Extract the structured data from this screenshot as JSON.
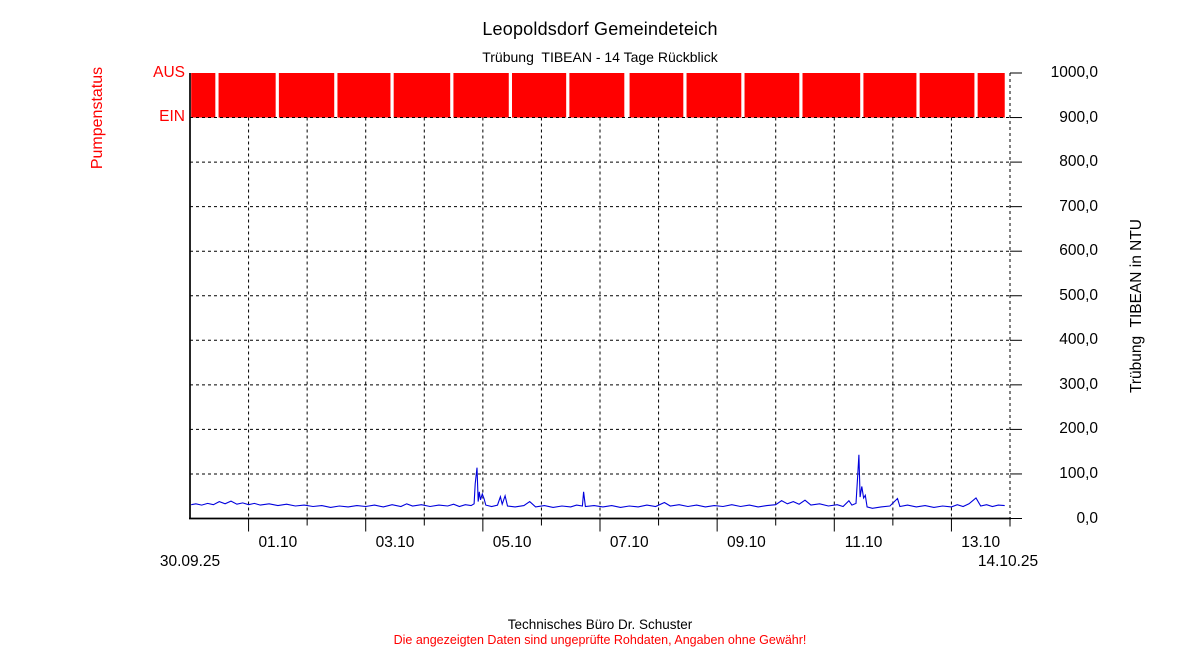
{
  "header": {
    "title": "Leopoldsdorf Gemeindeteich",
    "subtitle": "Trübung  TIBEAN - 14 Tage Rückblick"
  },
  "left_axis": {
    "title": "Pumpenstatus",
    "state_high": "AUS",
    "state_low": "EIN",
    "color": "#ff0000"
  },
  "right_axis": {
    "title": "Trübung  TIBEAN in NTU",
    "tick_labels": [
      "1000,0",
      "900,0",
      "800,0",
      "700,0",
      "600,0",
      "500,0",
      "400,0",
      "300,0",
      "200,0",
      "100,0",
      "0,0"
    ]
  },
  "x_axis": {
    "start_label": "30.09.25",
    "end_label": "14.10.25",
    "tick_labels": [
      "01.10",
      "03.10",
      "05.10",
      "07.10",
      "09.10",
      "11.10",
      "13.10"
    ]
  },
  "footer": {
    "company": "Technisches Büro Dr. Schuster",
    "disclaimer": "Die angezeigten Daten sind ungeprüfte Rohdaten, Angaben ohne Gewähr!"
  },
  "chart_data": {
    "type": "line",
    "title": "Leopoldsdorf Gemeindeteich",
    "subtitle": "Trübung  TIBEAN - 14 Tage Rückblick",
    "x_start_date": "30.09.25",
    "x_end_date": "14.10.25",
    "x_range_days": [
      0,
      14
    ],
    "x_day_tick_labels": [
      "01.10",
      "03.10",
      "05.10",
      "07.10",
      "09.10",
      "11.10",
      "13.10"
    ],
    "ylabel": "Trübung  TIBEAN in NTU",
    "ylim": [
      0,
      1000
    ],
    "y_step": 100,
    "grid": "dashed vertical line per day, dashed horizontal line per 100 NTU",
    "legend_position": "none",
    "pump_status": {
      "label": "Pumpenstatus",
      "high_label": "AUS",
      "low_label": "EIN",
      "band_level_ntu": [
        900,
        1000
      ],
      "color": "#ff0000",
      "span_days": [
        0.02,
        13.91
      ],
      "ein_gap_centers_days": [
        0.46,
        1.49,
        2.49,
        3.45,
        4.47,
        5.47,
        6.45,
        7.46,
        8.45,
        9.44,
        10.43,
        11.47,
        12.43,
        13.42
      ],
      "gap_width_days": 0.055,
      "wide_gap_index": 7,
      "wide_gap_width_days": 0.09
    },
    "turbidity_series": {
      "name": "Trübung TIBEAN",
      "color": "#0000dd",
      "units": "NTU",
      "points_day_ntu": [
        [
          0.02,
          31
        ],
        [
          0.1,
          33
        ],
        [
          0.2,
          30
        ],
        [
          0.3,
          34
        ],
        [
          0.4,
          31
        ],
        [
          0.5,
          38
        ],
        [
          0.6,
          33
        ],
        [
          0.7,
          39
        ],
        [
          0.8,
          32
        ],
        [
          0.9,
          35
        ],
        [
          1.0,
          31
        ],
        [
          1.1,
          34
        ],
        [
          1.2,
          30
        ],
        [
          1.35,
          33
        ],
        [
          1.5,
          29
        ],
        [
          1.65,
          32
        ],
        [
          1.8,
          28
        ],
        [
          1.95,
          30
        ],
        [
          2.1,
          27
        ],
        [
          2.25,
          29
        ],
        [
          2.4,
          25
        ],
        [
          2.55,
          28
        ],
        [
          2.7,
          26
        ],
        [
          2.85,
          29
        ],
        [
          3.0,
          27
        ],
        [
          3.15,
          30
        ],
        [
          3.3,
          26
        ],
        [
          3.45,
          31
        ],
        [
          3.6,
          27
        ],
        [
          3.7,
          33
        ],
        [
          3.8,
          28
        ],
        [
          3.95,
          31
        ],
        [
          4.1,
          27
        ],
        [
          4.25,
          30
        ],
        [
          4.4,
          28
        ],
        [
          4.5,
          32
        ],
        [
          4.6,
          27
        ],
        [
          4.7,
          31
        ],
        [
          4.8,
          29
        ],
        [
          4.85,
          33
        ],
        [
          4.87,
          78
        ],
        [
          4.9,
          114
        ],
        [
          4.92,
          38
        ],
        [
          4.94,
          60
        ],
        [
          4.96,
          42
        ],
        [
          4.99,
          55
        ],
        [
          5.02,
          45
        ],
        [
          5.05,
          30
        ],
        [
          5.15,
          27
        ],
        [
          5.25,
          30
        ],
        [
          5.3,
          49
        ],
        [
          5.33,
          32
        ],
        [
          5.38,
          51
        ],
        [
          5.42,
          28
        ],
        [
          5.55,
          26
        ],
        [
          5.7,
          29
        ],
        [
          5.8,
          38
        ],
        [
          5.9,
          26
        ],
        [
          6.05,
          29
        ],
        [
          6.2,
          25
        ],
        [
          6.35,
          28
        ],
        [
          6.5,
          26
        ],
        [
          6.6,
          30
        ],
        [
          6.7,
          28
        ],
        [
          6.72,
          60
        ],
        [
          6.75,
          27
        ],
        [
          6.9,
          29
        ],
        [
          7.05,
          26
        ],
        [
          7.2,
          29
        ],
        [
          7.35,
          25
        ],
        [
          7.5,
          28
        ],
        [
          7.65,
          26
        ],
        [
          7.8,
          30
        ],
        [
          7.95,
          27
        ],
        [
          8.1,
          36
        ],
        [
          8.2,
          28
        ],
        [
          8.35,
          31
        ],
        [
          8.5,
          27
        ],
        [
          8.65,
          30
        ],
        [
          8.8,
          26
        ],
        [
          8.95,
          29
        ],
        [
          9.1,
          27
        ],
        [
          9.25,
          31
        ],
        [
          9.4,
          27
        ],
        [
          9.55,
          30
        ],
        [
          9.7,
          26
        ],
        [
          9.85,
          29
        ],
        [
          10.0,
          31
        ],
        [
          10.1,
          40
        ],
        [
          10.2,
          33
        ],
        [
          10.3,
          38
        ],
        [
          10.4,
          32
        ],
        [
          10.5,
          41
        ],
        [
          10.6,
          30
        ],
        [
          10.75,
          33
        ],
        [
          10.9,
          28
        ],
        [
          11.05,
          31
        ],
        [
          11.15,
          27
        ],
        [
          11.25,
          40
        ],
        [
          11.3,
          30
        ],
        [
          11.37,
          34
        ],
        [
          11.4,
          96
        ],
        [
          11.42,
          143
        ],
        [
          11.44,
          48
        ],
        [
          11.47,
          72
        ],
        [
          11.5,
          46
        ],
        [
          11.53,
          52
        ],
        [
          11.56,
          26
        ],
        [
          11.65,
          23
        ],
        [
          11.8,
          26
        ],
        [
          11.95,
          28
        ],
        [
          12.08,
          45
        ],
        [
          12.12,
          27
        ],
        [
          12.25,
          30
        ],
        [
          12.4,
          26
        ],
        [
          12.55,
          29
        ],
        [
          12.7,
          25
        ],
        [
          12.85,
          28
        ],
        [
          13.0,
          26
        ],
        [
          13.1,
          31
        ],
        [
          13.2,
          27
        ],
        [
          13.3,
          33
        ],
        [
          13.42,
          46
        ],
        [
          13.5,
          28
        ],
        [
          13.6,
          31
        ],
        [
          13.7,
          27
        ],
        [
          13.8,
          30
        ],
        [
          13.91,
          29
        ]
      ]
    }
  }
}
